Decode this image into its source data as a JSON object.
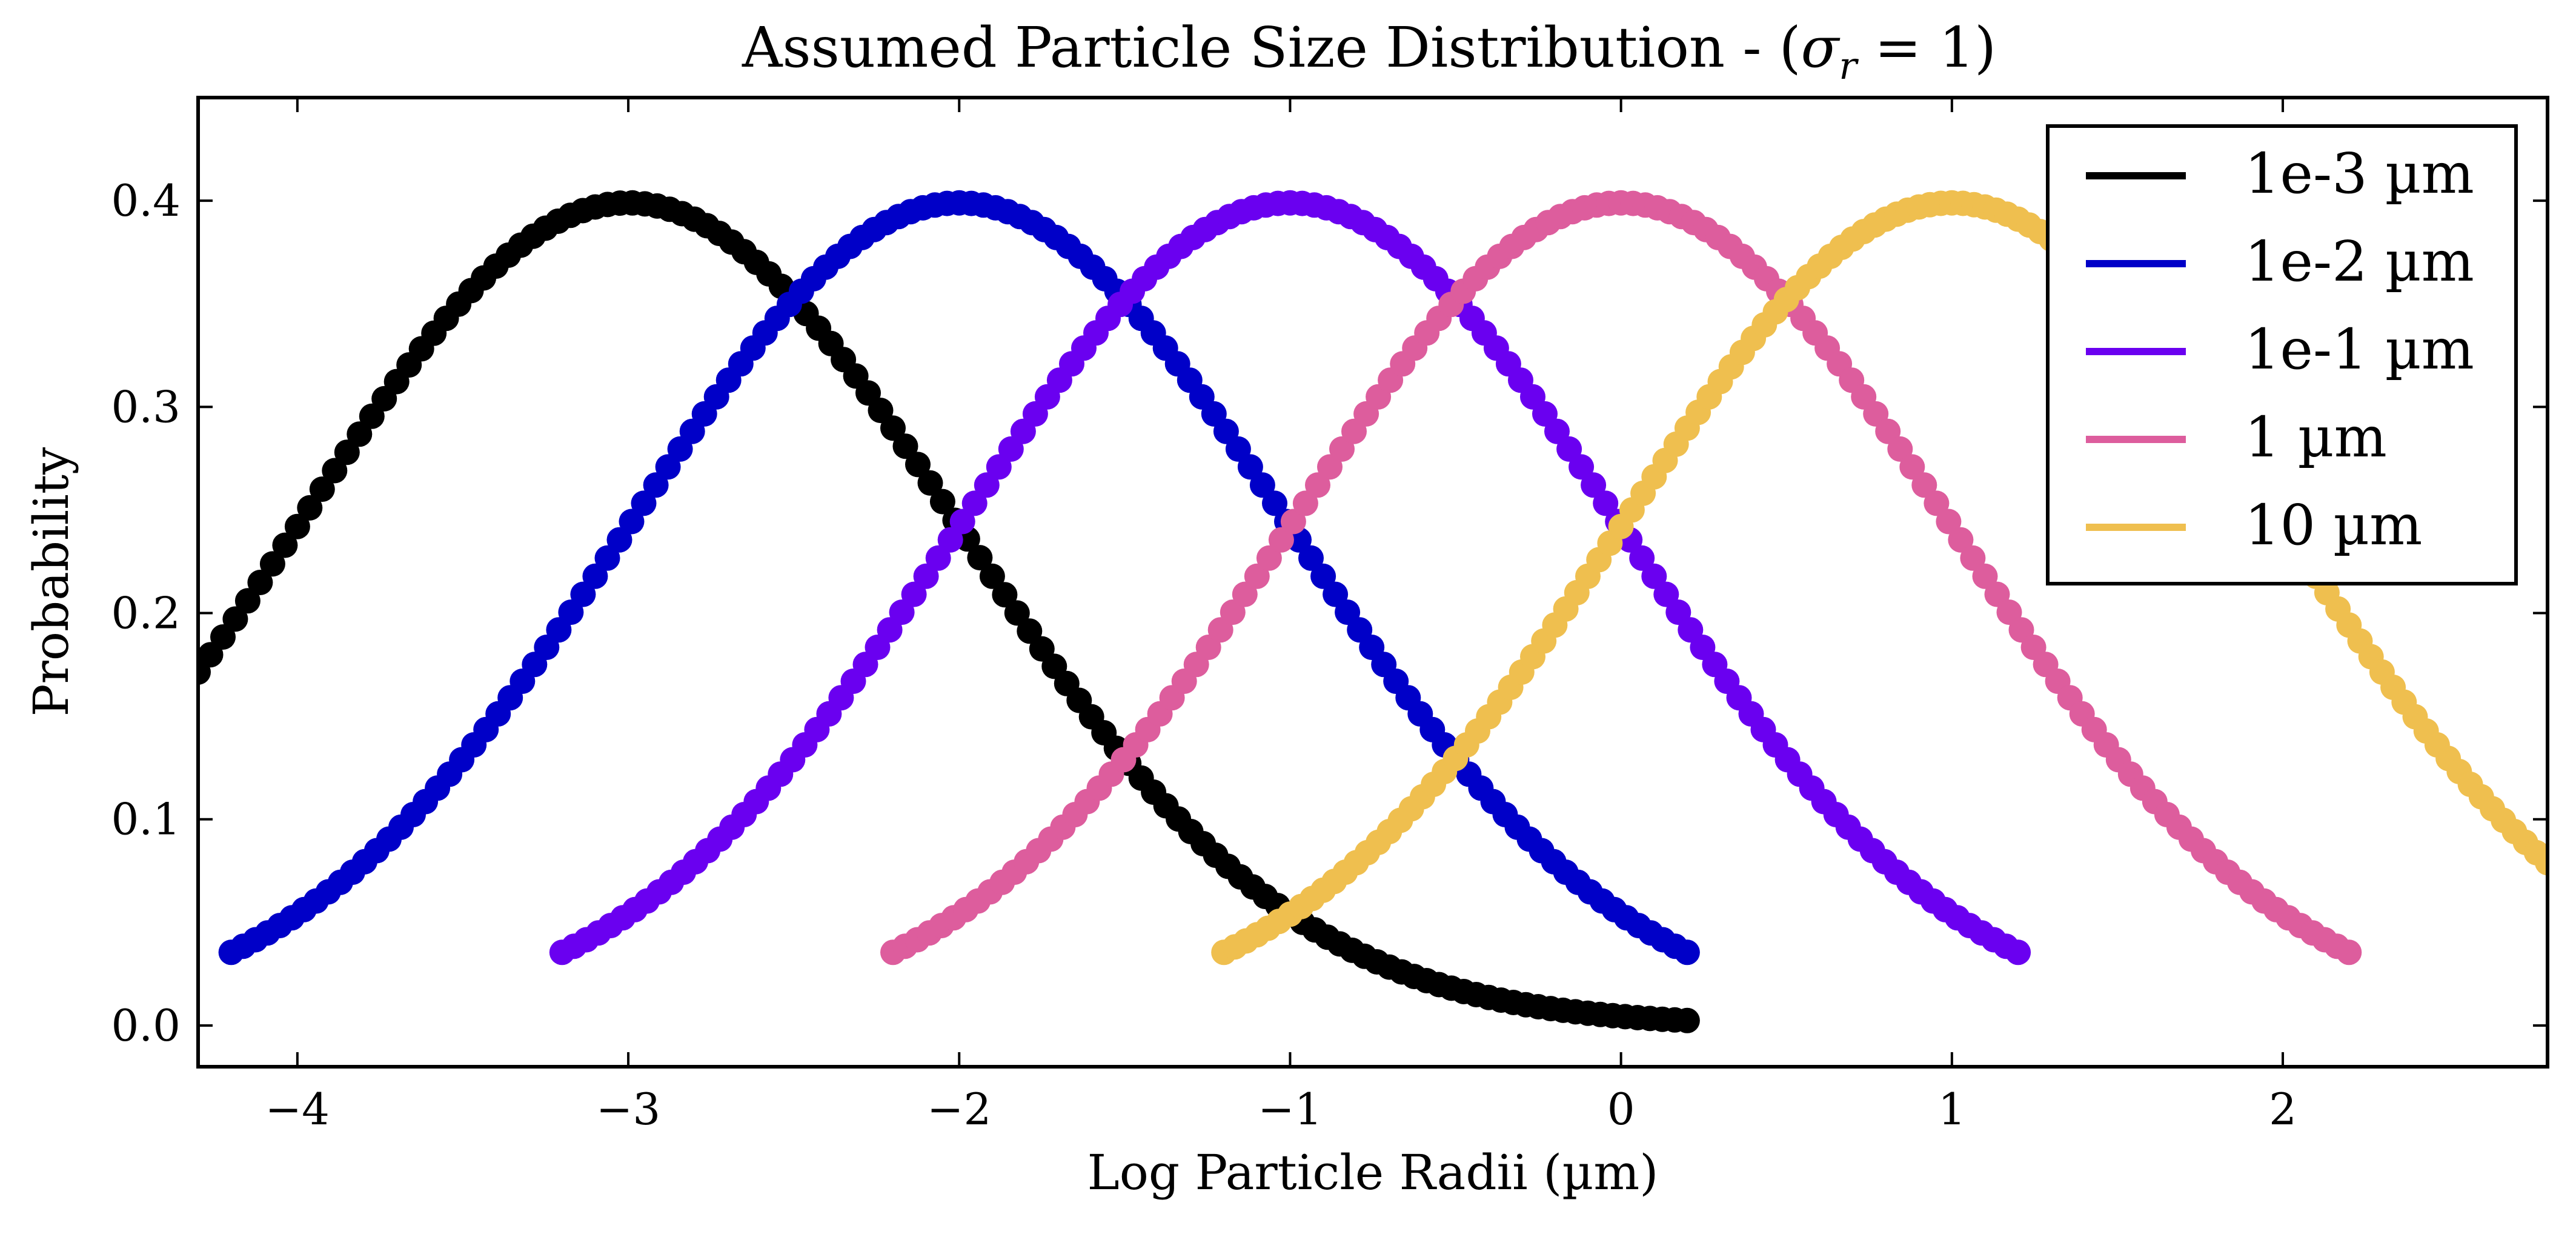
{
  "chart_data": {
    "type": "line",
    "title": "Assumed Particle Size Distribution - (",
    "title_sigma": "σ",
    "title_sub": "r",
    "title_end": " = 1)",
    "xlabel": "Log Particle Radii (µm)",
    "ylabel": "Probability",
    "xlim": [
      -4.3,
      2.8
    ],
    "ylim": [
      -0.02,
      0.45
    ],
    "xticks": [
      -4,
      -3,
      -2,
      -1,
      0,
      1,
      2
    ],
    "xtick_labels": [
      "−4",
      "−3",
      "−2",
      "−1",
      "0",
      "1",
      "2"
    ],
    "yticks": [
      0.0,
      0.1,
      0.2,
      0.3,
      0.4
    ],
    "ytick_labels": [
      "0.0",
      "0.1",
      "0.2",
      "0.3",
      "0.4"
    ],
    "grid": false,
    "legend_position": "top-right",
    "distribution": "normal",
    "sigma": 1,
    "series": [
      {
        "name": "1e-3 µm",
        "color": "#000000",
        "mean": -3,
        "x_range": [
          -4.3,
          0.2
        ]
      },
      {
        "name": "1e-2 µm",
        "color": "#0000c8",
        "mean": -2,
        "x_range": [
          -4.2,
          0.2
        ]
      },
      {
        "name": "1e-1 µm",
        "color": "#6a00f0",
        "mean": -1,
        "x_range": [
          -3.2,
          1.2
        ]
      },
      {
        "name": "1 µm",
        "color": "#dd5d9d",
        "mean": 0,
        "x_range": [
          -2.2,
          2.2
        ]
      },
      {
        "name": "10 µm",
        "color": "#efbf4f",
        "mean": 1,
        "x_range": [
          -1.2,
          2.8
        ]
      }
    ]
  }
}
